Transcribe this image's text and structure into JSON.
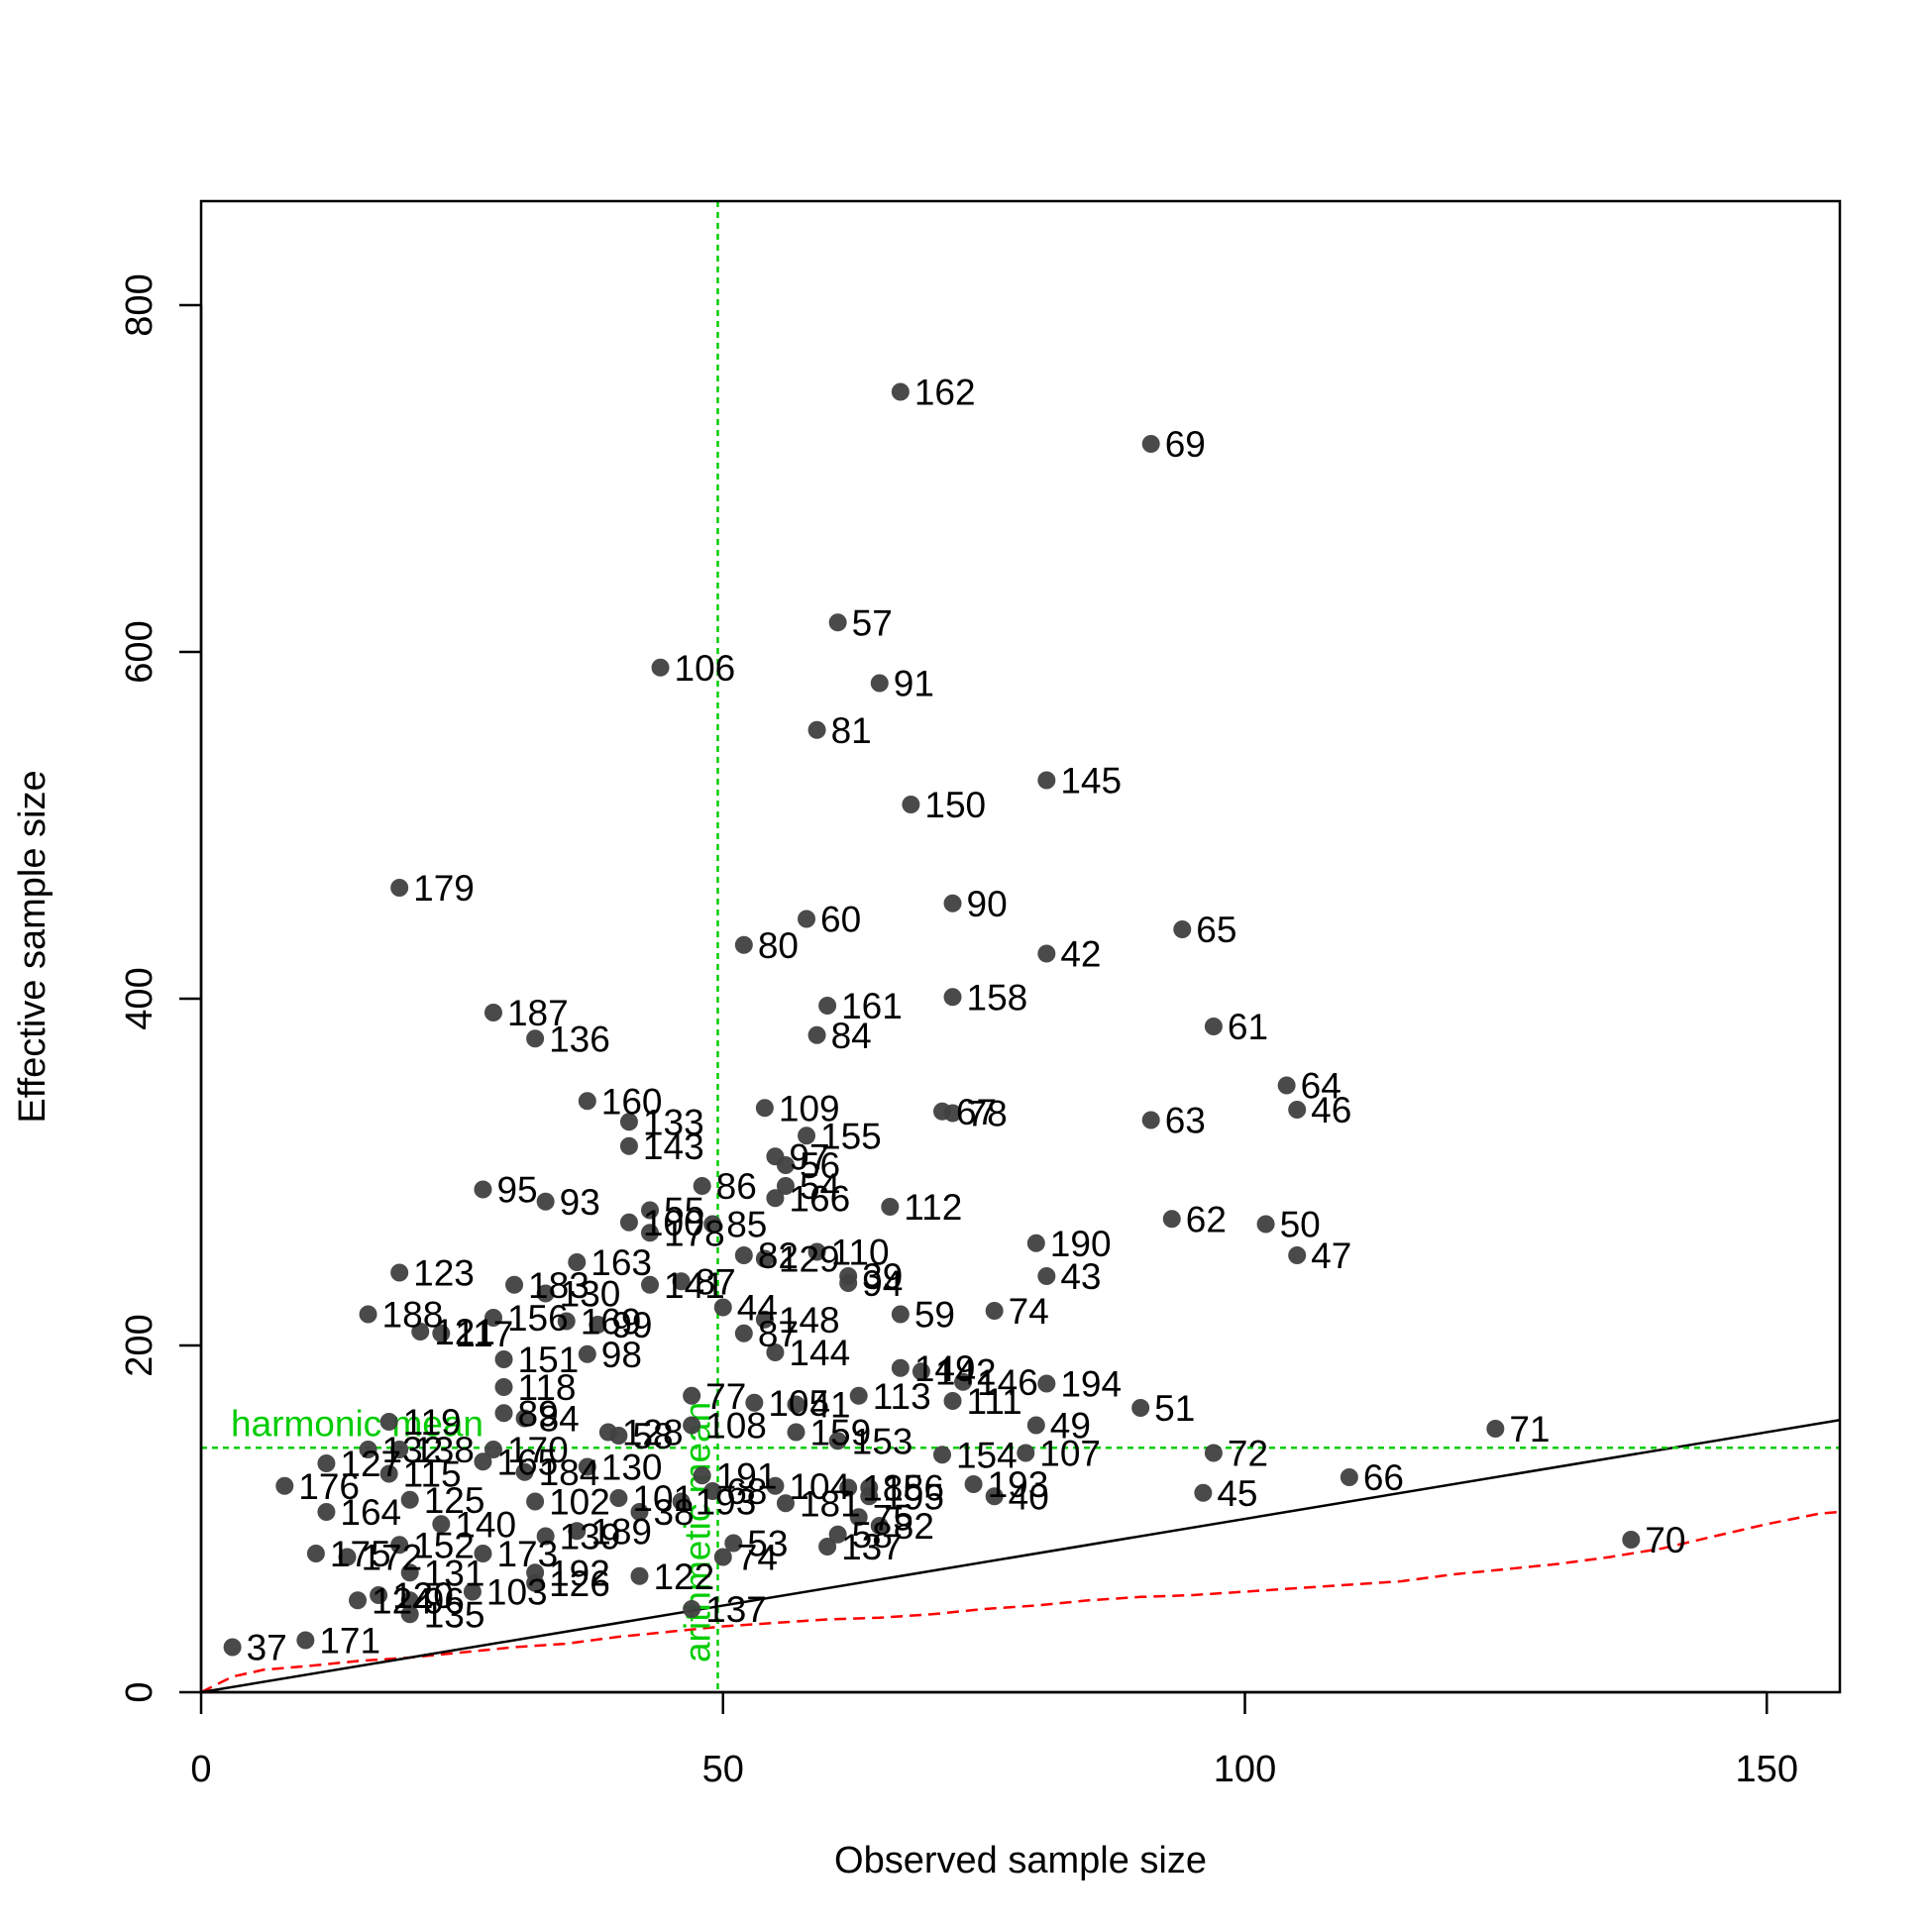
{
  "chart_data": {
    "type": "scatter",
    "title": "",
    "xlabel": "Observed sample size",
    "ylabel": "Effective sample size",
    "xlim": [
      0,
      157
    ],
    "ylim": [
      0,
      860
    ],
    "x_ticks": [
      0,
      50,
      100,
      150
    ],
    "y_ticks": [
      0,
      200,
      400,
      600,
      800
    ],
    "x_tick_labels": [
      "0",
      "50",
      "100",
      "150"
    ],
    "y_tick_labels": [
      "0",
      "200",
      "400",
      "600",
      "800"
    ],
    "grid": false,
    "colors": {
      "points": "#404040",
      "reference": "#00cc00",
      "identity": "#000000",
      "lower_curve": "#ff0000"
    },
    "reference_lines": {
      "harmonic": {
        "label": "harmonic mean",
        "value": 141
      },
      "arithmetic": {
        "label": "arithmetic mean",
        "value": 49.5
      }
    },
    "identity_line": {
      "slope": 1
    },
    "lower_curve": [
      [
        0,
        0
      ],
      [
        3,
        9
      ],
      [
        6,
        13
      ],
      [
        10,
        15
      ],
      [
        15,
        18
      ],
      [
        20,
        20
      ],
      [
        25,
        23
      ],
      [
        30,
        26
      ],
      [
        35,
        28
      ],
      [
        40,
        32
      ],
      [
        45,
        35
      ],
      [
        50,
        38
      ],
      [
        55,
        40
      ],
      [
        60,
        42
      ],
      [
        65,
        43
      ],
      [
        70,
        45
      ],
      [
        75,
        48
      ],
      [
        80,
        50
      ],
      [
        85,
        53
      ],
      [
        90,
        55
      ],
      [
        95,
        56
      ],
      [
        100,
        58
      ],
      [
        105,
        60
      ],
      [
        110,
        62
      ],
      [
        115,
        64
      ],
      [
        120,
        68
      ],
      [
        125,
        71
      ],
      [
        130,
        74
      ],
      [
        135,
        78
      ],
      [
        140,
        83
      ],
      [
        145,
        90
      ],
      [
        150,
        97
      ],
      [
        155,
        103
      ],
      [
        157,
        104
      ]
    ],
    "points": [
      {
        "label": "162",
        "x": 67,
        "y": 750
      },
      {
        "label": "69",
        "x": 91,
        "y": 720
      },
      {
        "label": "57",
        "x": 61,
        "y": 617
      },
      {
        "label": "106",
        "x": 44,
        "y": 591
      },
      {
        "label": "91",
        "x": 65,
        "y": 582
      },
      {
        "label": "81",
        "x": 59,
        "y": 555
      },
      {
        "label": "145",
        "x": 81,
        "y": 526
      },
      {
        "label": "150",
        "x": 68,
        "y": 512
      },
      {
        "label": "179",
        "x": 19,
        "y": 464
      },
      {
        "label": "90",
        "x": 72,
        "y": 455
      },
      {
        "label": "60",
        "x": 58,
        "y": 446
      },
      {
        "label": "65",
        "x": 94,
        "y": 440
      },
      {
        "label": "80",
        "x": 52,
        "y": 431
      },
      {
        "label": "42",
        "x": 81,
        "y": 426
      },
      {
        "label": "158",
        "x": 72,
        "y": 401
      },
      {
        "label": "161",
        "x": 60,
        "y": 396
      },
      {
        "label": "187",
        "x": 28,
        "y": 392
      },
      {
        "label": "61",
        "x": 97,
        "y": 384
      },
      {
        "label": "84",
        "x": 59,
        "y": 379
      },
      {
        "label": "136",
        "x": 32,
        "y": 377
      },
      {
        "label": "64",
        "x": 104,
        "y": 350
      },
      {
        "label": "160",
        "x": 37,
        "y": 341
      },
      {
        "label": "109",
        "x": 54,
        "y": 337
      },
      {
        "label": "46",
        "x": 105,
        "y": 336
      },
      {
        "label": "67",
        "x": 71,
        "y": 335
      },
      {
        "label": "78",
        "x": 72,
        "y": 334
      },
      {
        "label": "63",
        "x": 91,
        "y": 330
      },
      {
        "label": "133",
        "x": 41,
        "y": 329
      },
      {
        "label": "155",
        "x": 58,
        "y": 321
      },
      {
        "label": "143",
        "x": 41,
        "y": 315
      },
      {
        "label": "97",
        "x": 55,
        "y": 309
      },
      {
        "label": "56",
        "x": 56,
        "y": 304
      },
      {
        "label": "86",
        "x": 48,
        "y": 292
      },
      {
        "label": "95",
        "x": 27,
        "y": 290
      },
      {
        "label": "54",
        "x": 56,
        "y": 292
      },
      {
        "label": "166",
        "x": 55,
        "y": 285
      },
      {
        "label": "93",
        "x": 33,
        "y": 283
      },
      {
        "label": "112",
        "x": 66,
        "y": 280
      },
      {
        "label": "55",
        "x": 43,
        "y": 278
      },
      {
        "label": "62",
        "x": 93,
        "y": 273
      },
      {
        "label": "50",
        "x": 102,
        "y": 270
      },
      {
        "label": "100",
        "x": 41,
        "y": 271
      },
      {
        "label": "85",
        "x": 49,
        "y": 270
      },
      {
        "label": "178",
        "x": 43,
        "y": 265
      },
      {
        "label": "190",
        "x": 80,
        "y": 259
      },
      {
        "label": "110",
        "x": 59,
        "y": 254
      },
      {
        "label": "82",
        "x": 52,
        "y": 252
      },
      {
        "label": "47",
        "x": 105,
        "y": 252
      },
      {
        "label": "129",
        "x": 54,
        "y": 250
      },
      {
        "label": "163",
        "x": 36,
        "y": 248
      },
      {
        "label": "123",
        "x": 19,
        "y": 242
      },
      {
        "label": "39",
        "x": 62,
        "y": 240
      },
      {
        "label": "43",
        "x": 81,
        "y": 240
      },
      {
        "label": "94",
        "x": 62,
        "y": 236
      },
      {
        "label": "183",
        "x": 30,
        "y": 235
      },
      {
        "label": "141",
        "x": 43,
        "y": 235
      },
      {
        "label": "87",
        "x": 46,
        "y": 237
      },
      {
        "label": "130",
        "x": 33,
        "y": 230
      },
      {
        "label": "44",
        "x": 50,
        "y": 222
      },
      {
        "label": "74",
        "x": 76,
        "y": 220
      },
      {
        "label": "59",
        "x": 67,
        "y": 218
      },
      {
        "label": "188",
        "x": 16,
        "y": 218
      },
      {
        "label": "156",
        "x": 28,
        "y": 216
      },
      {
        "label": "148",
        "x": 54,
        "y": 215
      },
      {
        "label": "169",
        "x": 35,
        "y": 214
      },
      {
        "label": "99",
        "x": 38,
        "y": 212
      },
      {
        "label": "121",
        "x": 21,
        "y": 208
      },
      {
        "label": "117",
        "x": 23,
        "y": 207
      },
      {
        "label": "87b",
        "x": 52,
        "y": 207
      },
      {
        "label": "144",
        "x": 55,
        "y": 196
      },
      {
        "label": "98",
        "x": 37,
        "y": 195
      },
      {
        "label": "151",
        "x": 29,
        "y": 192
      },
      {
        "label": "149",
        "x": 67,
        "y": 187
      },
      {
        "label": "142",
        "x": 69,
        "y": 185
      },
      {
        "label": "194",
        "x": 81,
        "y": 178
      },
      {
        "label": "146",
        "x": 73,
        "y": 179
      },
      {
        "label": "118",
        "x": 29,
        "y": 176
      },
      {
        "label": "77",
        "x": 47,
        "y": 171
      },
      {
        "label": "113",
        "x": 63,
        "y": 171
      },
      {
        "label": "111",
        "x": 72,
        "y": 168
      },
      {
        "label": "105",
        "x": 53,
        "y": 167
      },
      {
        "label": "41",
        "x": 57,
        "y": 166
      },
      {
        "label": "51",
        "x": 90,
        "y": 164
      },
      {
        "label": "89",
        "x": 29,
        "y": 161
      },
      {
        "label": "84b",
        "x": 31,
        "y": 158
      },
      {
        "label": "119",
        "x": 18,
        "y": 156
      },
      {
        "label": "49",
        "x": 80,
        "y": 154
      },
      {
        "label": "108",
        "x": 47,
        "y": 154
      },
      {
        "label": "71",
        "x": 124,
        "y": 152
      },
      {
        "label": "128",
        "x": 39,
        "y": 150
      },
      {
        "label": "58",
        "x": 40,
        "y": 148
      },
      {
        "label": "159",
        "x": 57,
        "y": 150
      },
      {
        "label": "153",
        "x": 61,
        "y": 145
      },
      {
        "label": "107",
        "x": 79,
        "y": 138
      },
      {
        "label": "154",
        "x": 71,
        "y": 137
      },
      {
        "label": "72",
        "x": 97,
        "y": 138
      },
      {
        "label": "170",
        "x": 28,
        "y": 140
      },
      {
        "label": "132",
        "x": 16,
        "y": 140
      },
      {
        "label": "138",
        "x": 19,
        "y": 140
      },
      {
        "label": "130b",
        "x": 37,
        "y": 130
      },
      {
        "label": "127",
        "x": 12,
        "y": 132
      },
      {
        "label": "165",
        "x": 27,
        "y": 133
      },
      {
        "label": "184",
        "x": 31,
        "y": 127
      },
      {
        "label": "115",
        "x": 18,
        "y": 126
      },
      {
        "label": "66",
        "x": 110,
        "y": 124
      },
      {
        "label": "191",
        "x": 48,
        "y": 125
      },
      {
        "label": "104",
        "x": 55,
        "y": 119
      },
      {
        "label": "185",
        "x": 62,
        "y": 118
      },
      {
        "label": "186",
        "x": 64,
        "y": 118
      },
      {
        "label": "193",
        "x": 74,
        "y": 120
      },
      {
        "label": "176",
        "x": 8,
        "y": 119
      },
      {
        "label": "68",
        "x": 49,
        "y": 116
      },
      {
        "label": "45",
        "x": 96,
        "y": 115
      },
      {
        "label": "40",
        "x": 76,
        "y": 113
      },
      {
        "label": "195",
        "x": 64,
        "y": 113
      },
      {
        "label": "101",
        "x": 40,
        "y": 112
      },
      {
        "label": "125",
        "x": 20,
        "y": 111
      },
      {
        "label": "102",
        "x": 32,
        "y": 110
      },
      {
        "label": "181",
        "x": 56,
        "y": 109
      },
      {
        "label": "193b",
        "x": 46,
        "y": 110
      },
      {
        "label": "164",
        "x": 12,
        "y": 104
      },
      {
        "label": "38",
        "x": 42,
        "y": 104
      },
      {
        "label": "75",
        "x": 63,
        "y": 101
      },
      {
        "label": "140",
        "x": 23,
        "y": 97
      },
      {
        "label": "82b",
        "x": 65,
        "y": 96
      },
      {
        "label": "189",
        "x": 36,
        "y": 93
      },
      {
        "label": "58b",
        "x": 61,
        "y": 91
      },
      {
        "label": "139",
        "x": 33,
        "y": 90
      },
      {
        "label": "53",
        "x": 51,
        "y": 86
      },
      {
        "label": "152",
        "x": 19,
        "y": 85
      },
      {
        "label": "137b",
        "x": 60,
        "y": 84
      },
      {
        "label": "70",
        "x": 137,
        "y": 88
      },
      {
        "label": "173",
        "x": 27,
        "y": 80
      },
      {
        "label": "175",
        "x": 11,
        "y": 80
      },
      {
        "label": "172",
        "x": 14,
        "y": 78
      },
      {
        "label": "74b",
        "x": 50,
        "y": 78
      },
      {
        "label": "131",
        "x": 20,
        "y": 69
      },
      {
        "label": "192",
        "x": 32,
        "y": 69
      },
      {
        "label": "122",
        "x": 42,
        "y": 67
      },
      {
        "label": "126",
        "x": 32,
        "y": 63
      },
      {
        "label": "103",
        "x": 26,
        "y": 58
      },
      {
        "label": "120",
        "x": 17,
        "y": 56
      },
      {
        "label": "96",
        "x": 20,
        "y": 53
      },
      {
        "label": "124",
        "x": 15,
        "y": 53
      },
      {
        "label": "137",
        "x": 47,
        "y": 48
      },
      {
        "label": "135",
        "x": 20,
        "y": 45
      },
      {
        "label": "37",
        "x": 3,
        "y": 26
      },
      {
        "label": "171",
        "x": 10,
        "y": 30
      }
    ],
    "label_text": {
      "87b": "87",
      "84b": "84",
      "130b": "130",
      "193b": "193",
      "82b": "82",
      "58b": "58",
      "137b": "137",
      "74b": "74"
    }
  }
}
